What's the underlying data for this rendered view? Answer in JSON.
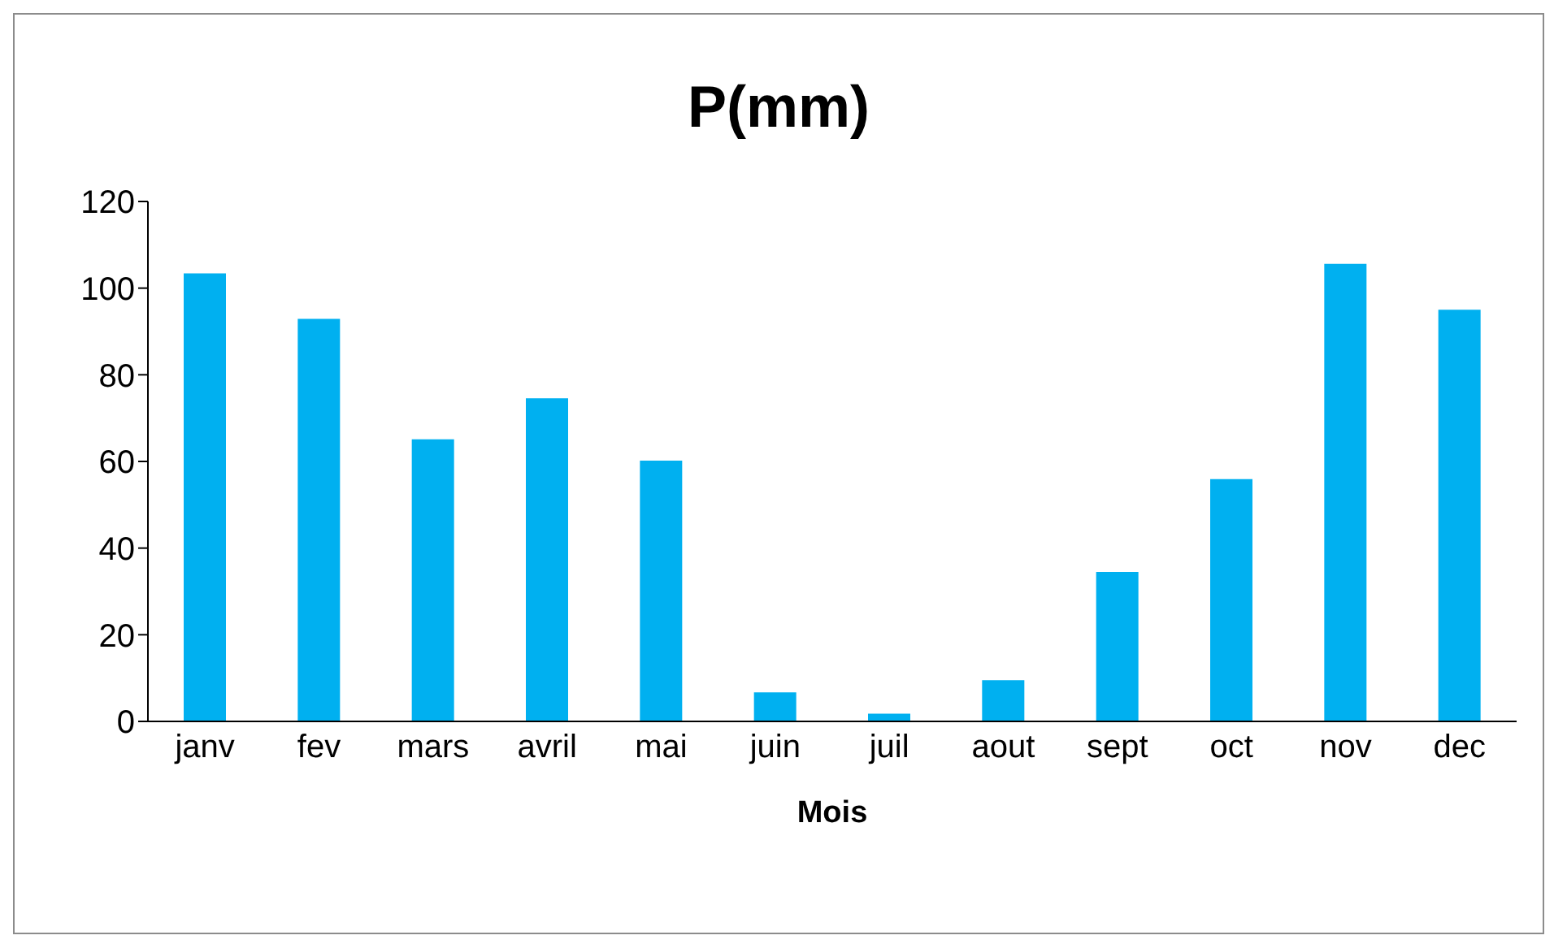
{
  "chart_data": {
    "type": "bar",
    "title": "P(mm)",
    "xlabel": "Mois",
    "categories": [
      "janv",
      "fev",
      "mars",
      "avril",
      "mai",
      "juin",
      "juil",
      "aout",
      "sept",
      "oct",
      "nov",
      "dec"
    ],
    "values": [
      103.4,
      92.9,
      65.1,
      74.6,
      60.2,
      6.7,
      1.8,
      9.5,
      34.5,
      55.9,
      105.6,
      95
    ],
    "color": "#00b0f0",
    "ylim": [
      0,
      120
    ],
    "yticks": [
      0,
      20,
      40,
      60,
      80,
      100,
      120
    ],
    "grid": false,
    "legend": false
  }
}
